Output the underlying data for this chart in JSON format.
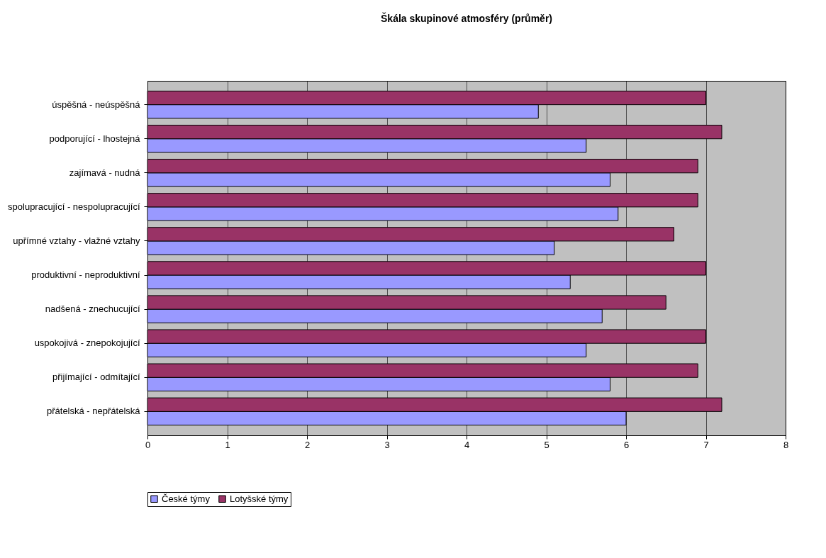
{
  "chart_data": {
    "type": "bar",
    "orientation": "horizontal",
    "title": "Škála skupinové atmosféry (průměr)",
    "categories": [
      "úspěšná - neúspěšná",
      "podporující - lhostejná",
      "zajímavá - nudná",
      "spolupracující - nespolupracující",
      "upřímné vztahy - vlažné vztahy",
      "produktivní - neproduktivní",
      "nadšená - znechucující",
      "uspokojivá - znepokojující",
      "přijímající - odmítající",
      "přátelská - nepřátelská"
    ],
    "series": [
      {
        "name": "České týmy",
        "color": "#9999ff",
        "values": [
          4.9,
          5.5,
          5.8,
          5.9,
          5.1,
          5.3,
          5.7,
          5.5,
          5.8,
          6.0
        ]
      },
      {
        "name": "Lotyšské týmy",
        "color": "#993366",
        "values": [
          7.0,
          7.2,
          6.9,
          6.9,
          6.6,
          7.0,
          6.5,
          7.0,
          6.9,
          7.2
        ]
      }
    ],
    "xlim": [
      0,
      8
    ],
    "xticks": [
      0,
      1,
      2,
      3,
      4,
      5,
      6,
      7,
      8
    ],
    "grid": "x",
    "legend": "bottom"
  }
}
